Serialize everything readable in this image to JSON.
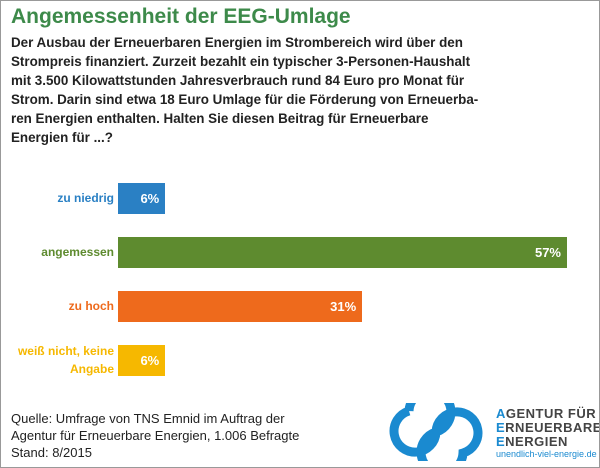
{
  "chart_data": {
    "type": "bar",
    "orientation": "horizontal",
    "title": "Angemessenheit der EEG-Umlage",
    "subtitle_lines": [
      "Der Ausbau der Erneuerbaren Energien im Strombereich wird über den",
      "Strompreis finanziert. Zurzeit bezahlt ein typischer 3-Personen-Haushalt",
      "mit 3.500 Kilowattstunden Jahresverbrauch rund 84 Euro pro Monat für",
      "Strom. Darin sind etwa 18 Euro Umlage für die Förderung von Erneuerba-",
      "ren Energien enthalten. Halten Sie diesen Beitrag für Erneuerbare",
      "Energien für ...?"
    ],
    "categories": [
      "zu niedrig",
      "angemessen",
      "zu hoch",
      "weiß nicht, keine Angabe"
    ],
    "values": [
      6,
      57,
      31,
      6
    ],
    "value_labels": [
      "6%",
      "57%",
      "31%",
      "6%"
    ],
    "colors": [
      "#2a80c4",
      "#5e8b2f",
      "#ee6a1c",
      "#f6b800"
    ],
    "source_lines": [
      "Quelle: Umfrage von TNS Emnid im Auftrag der",
      "Agentur für Erneuerbare Energien, 1.006 Befragte",
      "Stand: 8/2015"
    ],
    "logo": {
      "lines": [
        "AGENTUR FÜR",
        "ERNEUERBARE",
        "ENERGIEN"
      ],
      "url": "unendlich-viel-energie.de"
    }
  }
}
